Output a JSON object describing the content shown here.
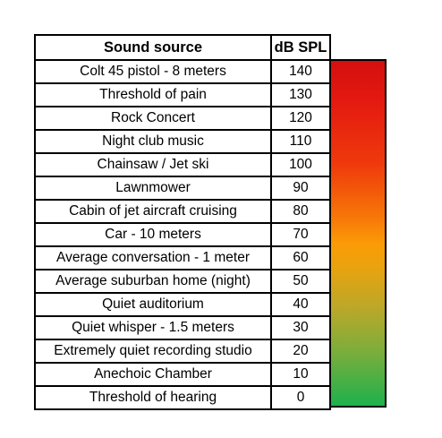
{
  "chart_data": {
    "type": "table",
    "columns": [
      "Sound source",
      "dB SPL"
    ],
    "rows": [
      {
        "source": "Colt 45 pistol - 8 meters",
        "db": 140
      },
      {
        "source": "Threshold of pain",
        "db": 130
      },
      {
        "source": "Rock Concert",
        "db": 120
      },
      {
        "source": "Night club music",
        "db": 110
      },
      {
        "source": "Chainsaw / Jet ski",
        "db": 100
      },
      {
        "source": "Lawnmower",
        "db": 90
      },
      {
        "source": "Cabin of jet aircraft cruising",
        "db": 80
      },
      {
        "source": "Car - 10 meters",
        "db": 70
      },
      {
        "source": "Average conversation - 1 meter",
        "db": 60
      },
      {
        "source": "Average suburban home (night)",
        "db": 50
      },
      {
        "source": "Quiet auditorium",
        "db": 40
      },
      {
        "source": "Quiet whisper - 1.5 meters",
        "db": 30
      },
      {
        "source": "Extremely quiet recording studio",
        "db": 20
      },
      {
        "source": "Anechoic Chamber",
        "db": 10
      },
      {
        "source": "Threshold of hearing",
        "db": 0
      }
    ],
    "colors": {
      "gradient_top": "#d40f0f",
      "gradient_middle": "#fb9b06",
      "gradient_bottom": "#1eb14d",
      "border": "#000000"
    }
  }
}
